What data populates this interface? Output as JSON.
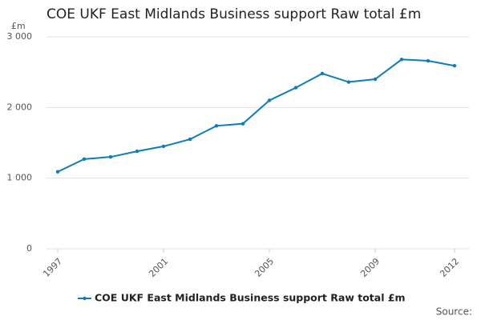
{
  "chart_data": {
    "type": "line",
    "title": "COE UKF East Midlands Business support Raw total £m",
    "y_unit": "£m",
    "source": "Source:",
    "x": [
      1997,
      1998,
      1999,
      2000,
      2001,
      2002,
      2003,
      2004,
      2005,
      2006,
      2007,
      2008,
      2009,
      2010,
      2011,
      2012
    ],
    "xlim": [
      1997,
      2012
    ],
    "xticks": [
      1997,
      2001,
      2005,
      2009,
      2012
    ],
    "series": [
      {
        "name": "COE UKF East Midlands Business support Raw total £m",
        "color": "#0b7dba",
        "values": [
          1090,
          1270,
          1300,
          1380,
          1450,
          1550,
          1740,
          1770,
          2100,
          2280,
          2480,
          2360,
          2400,
          2680,
          2660,
          2590
        ]
      }
    ],
    "ylim": [
      0,
      3000
    ],
    "yticks": [
      0,
      {
        "value": 1000,
        "label": "1 000"
      },
      {
        "value": 2000,
        "label": "2 000"
      },
      {
        "value": 3000,
        "label": "3 000"
      }
    ],
    "grid": true
  }
}
